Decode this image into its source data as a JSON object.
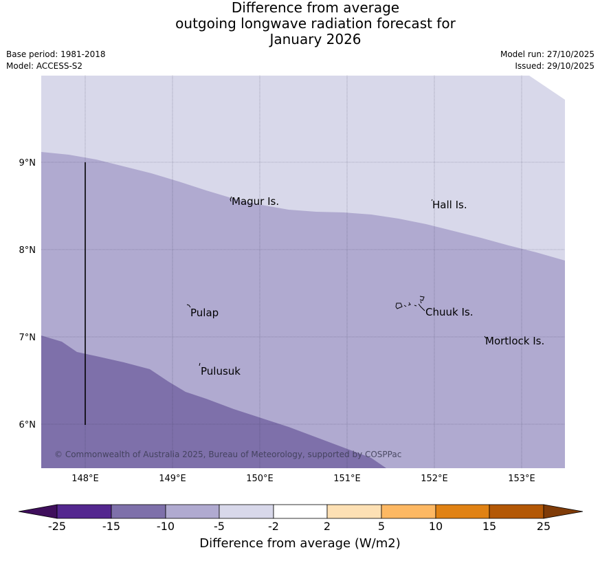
{
  "title": {
    "line1": "Difference from average",
    "line2": "outgoing longwave radiation forecast for",
    "line3": "January 2026"
  },
  "meta": {
    "base_period": "Base period: 1981-2018",
    "model": "Model: ACCESS-S2",
    "model_run": "Model run: 27/10/2025",
    "issued": "Issued: 29/10/2025"
  },
  "map": {
    "lon_ticks": [
      "148°E",
      "149°E",
      "150°E",
      "151°E",
      "152°E",
      "153°E"
    ],
    "lat_ticks": [
      "9°N",
      "8°N",
      "7°N",
      "6°N"
    ],
    "places": [
      "Magur Is.",
      "Hall Is.",
      "Pulap",
      "Chuuk Is.",
      "Mortlock Is.",
      "Pulusuk"
    ],
    "copyright": "© Commonwealth of Australia 2025, Bureau of Meteorology, supported by COSPPac"
  },
  "colorbar": {
    "ticks": [
      "-25",
      "-15",
      "-10",
      "-5",
      "-2",
      "2",
      "5",
      "10",
      "15",
      "25"
    ],
    "colors": [
      "#3f0f5c",
      "#54278f",
      "#7e70aa",
      "#b0aad0",
      "#d8d8ea",
      "#ffffff",
      "#fde0b4",
      "#fdb863",
      "#e08214",
      "#b35806",
      "#7f3b08"
    ],
    "label": "Difference from average (W/m2)"
  }
}
